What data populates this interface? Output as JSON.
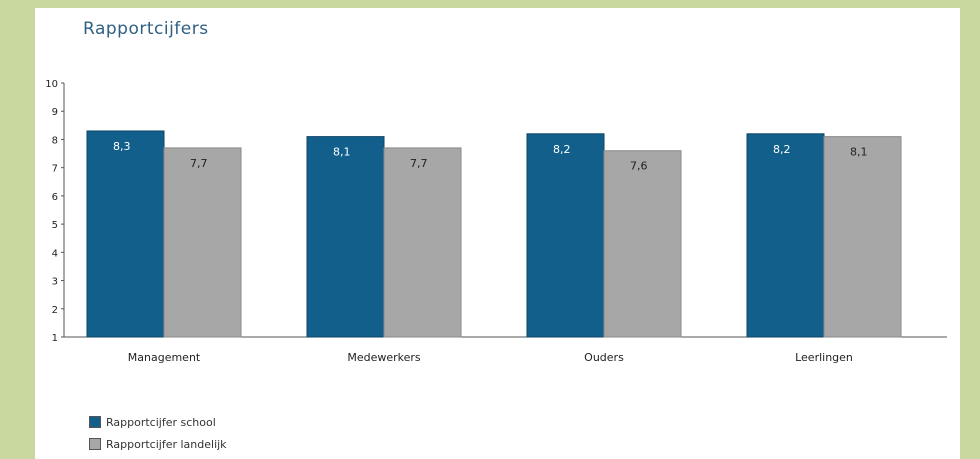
{
  "chart_data": {
    "type": "bar",
    "title": "Rapportcijfers",
    "categories": [
      "Management",
      "Medewerkers",
      "Ouders",
      "Leerlingen"
    ],
    "series": [
      {
        "name": "Rapportcijfer school",
        "values": [
          8.3,
          8.1,
          8.2,
          8.2
        ],
        "labels": [
          "8,3",
          "8,1",
          "8,2",
          "8,2"
        ],
        "color": "#125f8c"
      },
      {
        "name": "Rapportcijfer landelijk",
        "values": [
          7.7,
          7.7,
          7.6,
          8.1
        ],
        "labels": [
          "7,7",
          "7,7",
          "7,6",
          "8,1"
        ],
        "color": "#a7a7a7"
      }
    ],
    "yticks": [
      "1",
      "2",
      "3",
      "4",
      "5",
      "6",
      "7",
      "8",
      "9",
      "10"
    ],
    "ylim": [
      1,
      10
    ],
    "grid": false,
    "legend_position": "bottom-left"
  }
}
